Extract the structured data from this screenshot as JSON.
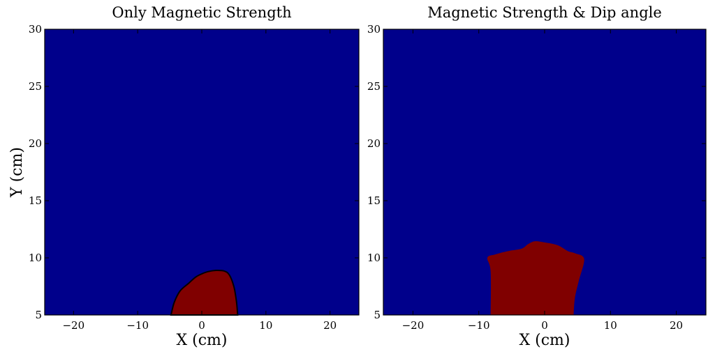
{
  "chart_data": [
    {
      "type": "contour",
      "title": "Only Magnetic Strength",
      "xlabel": "X (cm)",
      "ylabel": "Y (cm)",
      "xlim": [
        -24.5,
        24.5
      ],
      "ylim": [
        5,
        30
      ],
      "xticks": [
        -20,
        -10,
        0,
        10,
        20
      ],
      "yticks": [
        5,
        10,
        15,
        20,
        25,
        30
      ],
      "xtick_labels": [
        "−20",
        "−10",
        "0",
        "10",
        "20"
      ],
      "ytick_labels": [
        "5",
        "10",
        "15",
        "20",
        "25",
        "30"
      ],
      "background_color": "#00008b",
      "region_color": "#800000",
      "region_outlined": true,
      "region_boundary": [
        [
          -4.8,
          5.0
        ],
        [
          -4.3,
          6.1
        ],
        [
          -3.4,
          7.1
        ],
        [
          -2.0,
          7.8
        ],
        [
          -1.0,
          8.3
        ],
        [
          0.0,
          8.6
        ],
        [
          1.0,
          8.8
        ],
        [
          2.2,
          8.9
        ],
        [
          3.5,
          8.85
        ],
        [
          4.3,
          8.5
        ],
        [
          5.0,
          7.5
        ],
        [
          5.4,
          6.2
        ],
        [
          5.6,
          5.0
        ]
      ],
      "grid": false
    },
    {
      "type": "contour",
      "title": "Magnetic Strength & Dip angle",
      "xlabel": "X (cm)",
      "ylabel": "",
      "xlim": [
        -24.5,
        24.5
      ],
      "ylim": [
        5,
        30
      ],
      "xticks": [
        -20,
        -10,
        0,
        10,
        20
      ],
      "yticks": [
        5,
        10,
        15,
        20,
        25,
        30
      ],
      "xtick_labels": [
        "−20",
        "−10",
        "0",
        "10",
        "20"
      ],
      "ytick_labels": [
        "5",
        "10",
        "15",
        "20",
        "25",
        "30"
      ],
      "background_color": "#00008b",
      "region_color": "#800000",
      "region_outlined": false,
      "region_boundary": [
        [
          -8.2,
          5.0
        ],
        [
          -8.2,
          8.8
        ],
        [
          -8.7,
          10.0
        ],
        [
          -7.5,
          10.3
        ],
        [
          -5.5,
          10.6
        ],
        [
          -3.5,
          10.8
        ],
        [
          -2.5,
          11.2
        ],
        [
          -1.5,
          11.45
        ],
        [
          0.0,
          11.35
        ],
        [
          2.0,
          11.1
        ],
        [
          3.5,
          10.6
        ],
        [
          4.6,
          10.4
        ],
        [
          6.0,
          9.9
        ],
        [
          5.2,
          8.0
        ],
        [
          4.6,
          6.5
        ],
        [
          4.4,
          5.0
        ]
      ],
      "grid": false
    }
  ]
}
